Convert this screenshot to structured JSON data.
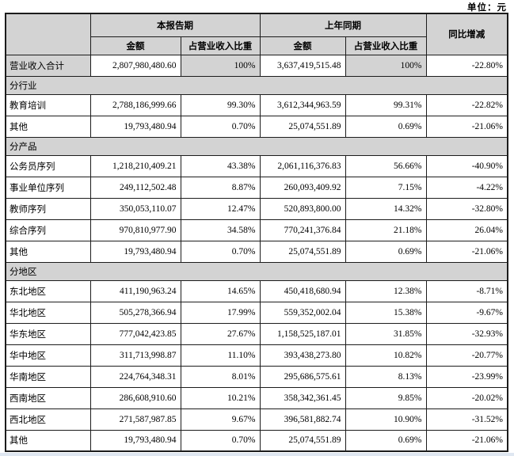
{
  "unit_label": "单位：元",
  "colors": {
    "shade": "#d3d3d3",
    "border": "#1c1c1c",
    "page_edge_strip": "#dfe7f1"
  },
  "table": {
    "header": {
      "current_period": "本报告期",
      "prior_period": "上年同期",
      "yoy_change": "同比增减",
      "amount": "金额",
      "pct_of_revenue": "占营业收入比重"
    },
    "rows": [
      {
        "type": "total",
        "label": "营业收入合计",
        "cur_amount": "2,807,980,480.60",
        "cur_pct": "100%",
        "prev_amount": "3,637,419,515.48",
        "prev_pct": "100%",
        "change": "-22.80%"
      },
      {
        "type": "section",
        "label": "分行业"
      },
      {
        "type": "data",
        "label": "教育培训",
        "cur_amount": "2,788,186,999.66",
        "cur_pct": "99.30%",
        "prev_amount": "3,612,344,963.59",
        "prev_pct": "99.31%",
        "change": "-22.82%"
      },
      {
        "type": "data",
        "label": "其他",
        "cur_amount": "19,793,480.94",
        "cur_pct": "0.70%",
        "prev_amount": "25,074,551.89",
        "prev_pct": "0.69%",
        "change": "-21.06%"
      },
      {
        "type": "section",
        "label": "分产品"
      },
      {
        "type": "data",
        "label": "公务员序列",
        "cur_amount": "1,218,210,409.21",
        "cur_pct": "43.38%",
        "prev_amount": "2,061,116,376.83",
        "prev_pct": "56.66%",
        "change": "-40.90%"
      },
      {
        "type": "data",
        "label": "事业单位序列",
        "cur_amount": "249,112,502.48",
        "cur_pct": "8.87%",
        "prev_amount": "260,093,409.92",
        "prev_pct": "7.15%",
        "change": "-4.22%"
      },
      {
        "type": "data",
        "label": "教师序列",
        "cur_amount": "350,053,110.07",
        "cur_pct": "12.47%",
        "prev_amount": "520,893,800.00",
        "prev_pct": "14.32%",
        "change": "-32.80%"
      },
      {
        "type": "data",
        "label": "综合序列",
        "cur_amount": "970,810,977.90",
        "cur_pct": "34.58%",
        "prev_amount": "770,241,376.84",
        "prev_pct": "21.18%",
        "change": "26.04%"
      },
      {
        "type": "data",
        "label": "其他",
        "cur_amount": "19,793,480.94",
        "cur_pct": "0.70%",
        "prev_amount": "25,074,551.89",
        "prev_pct": "0.69%",
        "change": "-21.06%"
      },
      {
        "type": "section",
        "label": "分地区"
      },
      {
        "type": "data",
        "label": "东北地区",
        "cur_amount": "411,190,963.24",
        "cur_pct": "14.65%",
        "prev_amount": "450,418,680.94",
        "prev_pct": "12.38%",
        "change": "-8.71%"
      },
      {
        "type": "data",
        "label": "华北地区",
        "cur_amount": "505,278,366.94",
        "cur_pct": "17.99%",
        "prev_amount": "559,352,002.04",
        "prev_pct": "15.38%",
        "change": "-9.67%"
      },
      {
        "type": "data",
        "label": "华东地区",
        "cur_amount": "777,042,423.85",
        "cur_pct": "27.67%",
        "prev_amount": "1,158,525,187.01",
        "prev_pct": "31.85%",
        "change": "-32.93%"
      },
      {
        "type": "data",
        "label": "华中地区",
        "cur_amount": "311,713,998.87",
        "cur_pct": "11.10%",
        "prev_amount": "393,438,273.80",
        "prev_pct": "10.82%",
        "change": "-20.77%"
      },
      {
        "type": "data",
        "label": "华南地区",
        "cur_amount": "224,764,348.31",
        "cur_pct": "8.01%",
        "prev_amount": "295,686,575.61",
        "prev_pct": "8.13%",
        "change": "-23.99%"
      },
      {
        "type": "data",
        "label": "西南地区",
        "cur_amount": "286,608,910.60",
        "cur_pct": "10.21%",
        "prev_amount": "358,342,361.45",
        "prev_pct": "9.85%",
        "change": "-20.02%"
      },
      {
        "type": "data",
        "label": "西北地区",
        "cur_amount": "271,587,987.85",
        "cur_pct": "9.67%",
        "prev_amount": "396,581,882.74",
        "prev_pct": "10.90%",
        "change": "-31.52%"
      },
      {
        "type": "data",
        "label": "其他",
        "cur_amount": "19,793,480.94",
        "cur_pct": "0.70%",
        "prev_amount": "25,074,551.89",
        "prev_pct": "0.69%",
        "change": "-21.06%"
      }
    ]
  }
}
